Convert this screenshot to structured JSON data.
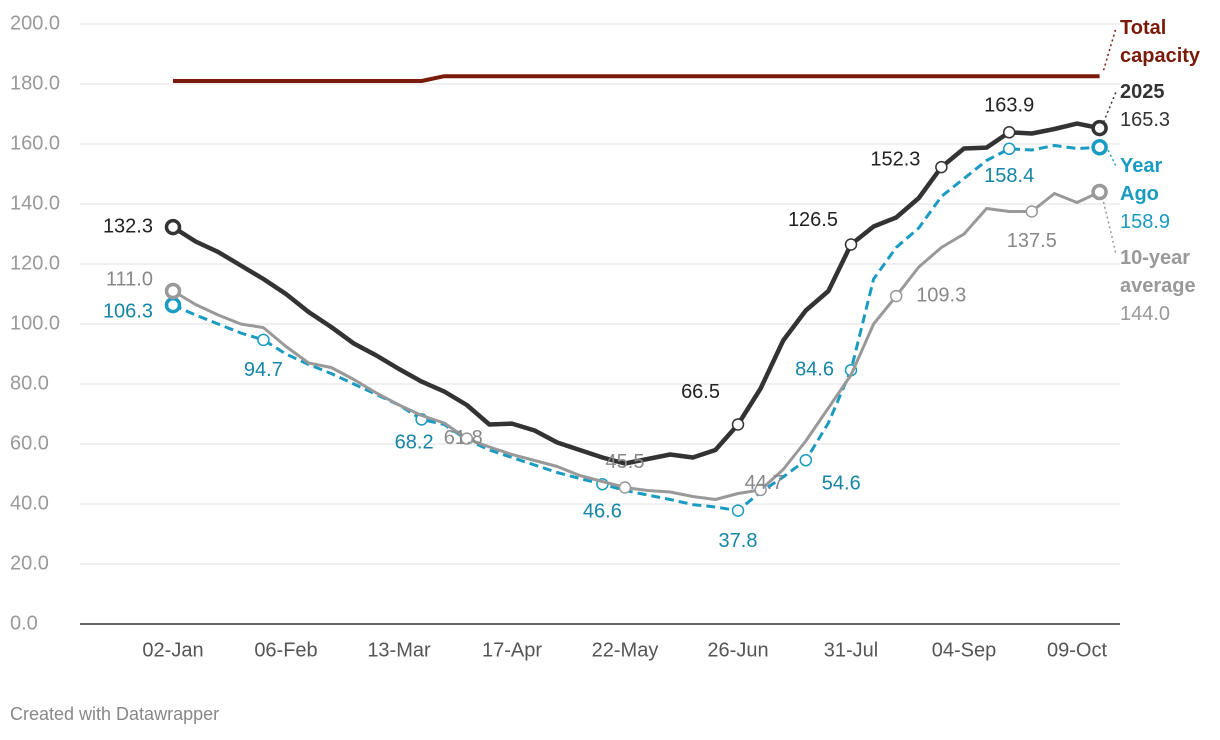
{
  "chart_data": {
    "type": "line",
    "footer": "Created with Datawrapper",
    "categories": [
      "02-Jan",
      null,
      null,
      null,
      null,
      "06-Feb",
      null,
      null,
      null,
      null,
      "13-Mar",
      null,
      null,
      null,
      null,
      "17-Apr",
      null,
      null,
      null,
      null,
      "22-May",
      null,
      null,
      null,
      null,
      "26-Jun",
      null,
      null,
      null,
      null,
      "31-Jul",
      null,
      null,
      null,
      null,
      "04-Sep",
      null,
      null,
      null,
      null,
      "09-Oct",
      null
    ],
    "ylim": [
      0,
      200
    ],
    "yticks": [
      {
        "value": 0,
        "label": "0.0"
      },
      {
        "value": 20,
        "label": "20.0"
      },
      {
        "value": 40,
        "label": "40.0"
      },
      {
        "value": 60,
        "label": "60.0"
      },
      {
        "value": 80,
        "label": "80.0"
      },
      {
        "value": 100,
        "label": "100.0"
      },
      {
        "value": 120,
        "label": "120.0"
      },
      {
        "value": 140,
        "label": "140.0"
      },
      {
        "value": 160,
        "label": "160.0"
      },
      {
        "value": 180,
        "label": "180.0"
      },
      {
        "value": 200,
        "label": "200.0"
      }
    ],
    "grid": true,
    "series": [
      {
        "name": "Total capacity",
        "color": "#7a1a0a",
        "values": [
          181,
          181,
          181,
          181,
          181,
          181,
          181,
          181,
          181,
          181,
          181,
          181,
          182.6,
          182.6,
          182.6,
          182.6,
          182.6,
          182.6,
          182.6,
          182.6,
          182.6,
          182.6,
          182.6,
          182.6,
          182.6,
          182.6,
          182.6,
          182.6,
          182.6,
          182.6,
          182.6,
          182.6,
          182.6,
          182.6,
          182.6,
          182.6,
          182.6,
          182.6,
          182.6,
          182.6,
          182.6,
          182.6
        ]
      },
      {
        "name": "2025",
        "color": "#333333",
        "values": [
          132.3,
          127.5,
          124,
          119.5,
          115,
          110,
          104,
          99,
          93.5,
          89.5,
          85,
          80.8,
          77.5,
          73,
          66.5,
          66.8,
          64.5,
          60.5,
          58,
          55.5,
          53.5,
          55,
          56.5,
          55.5,
          58,
          66.5,
          78.5,
          94.5,
          104.5,
          111,
          126.5,
          132.5,
          135.5,
          142,
          152.3,
          158.5,
          158.8,
          163.9,
          163.5,
          165,
          166.8,
          165.3
        ],
        "value_labels": [
          "132.3",
          null,
          null,
          null,
          null,
          null,
          null,
          null,
          null,
          null,
          null,
          null,
          null,
          null,
          null,
          null,
          null,
          null,
          null,
          null,
          null,
          null,
          null,
          null,
          null,
          "66.5",
          null,
          null,
          null,
          null,
          "126.5",
          null,
          null,
          null,
          "152.3",
          null,
          null,
          "163.9",
          null,
          null,
          null,
          "165.3"
        ]
      },
      {
        "name": "Year Ago",
        "color": "#1a9bc2",
        "dashed": true,
        "values": [
          106.3,
          103,
          100,
          97,
          94.7,
          90,
          86.5,
          83.5,
          80,
          76.5,
          73,
          68.2,
          66.5,
          61.5,
          58,
          55.5,
          53,
          50.5,
          48.5,
          46.6,
          44.5,
          43,
          41.5,
          39.8,
          39,
          37.8,
          44,
          49,
          54.6,
          67,
          84.6,
          115,
          125.5,
          132,
          142.5,
          148.5,
          154.5,
          158.4,
          158,
          159.5,
          158.5,
          158.9
        ],
        "value_labels": [
          "106.3",
          null,
          null,
          null,
          "94.7",
          null,
          null,
          null,
          null,
          null,
          null,
          "68.2",
          null,
          null,
          null,
          null,
          null,
          null,
          null,
          "46.6",
          null,
          null,
          null,
          null,
          null,
          "37.8",
          null,
          null,
          "54.6",
          null,
          "84.6",
          null,
          null,
          null,
          null,
          null,
          null,
          "158.4",
          null,
          null,
          null,
          "158.9"
        ]
      },
      {
        "name": "10-year average",
        "color": "#999999",
        "values": [
          111.0,
          106.5,
          103,
          100,
          98.8,
          92.5,
          87,
          85.5,
          81.5,
          77,
          73,
          69.5,
          67,
          61.8,
          59,
          56.5,
          54.5,
          52.5,
          49.5,
          47.5,
          45.5,
          44.5,
          44,
          42.5,
          41.5,
          43.5,
          44.7,
          51.5,
          61,
          72,
          83,
          100,
          109.3,
          119,
          125.5,
          130,
          138.5,
          137.5,
          137.5,
          143.5,
          140.5,
          144.0
        ],
        "value_labels": [
          "111.0",
          null,
          null,
          null,
          null,
          null,
          null,
          null,
          null,
          null,
          null,
          null,
          null,
          "61.8",
          null,
          null,
          null,
          null,
          null,
          null,
          "45.5",
          null,
          null,
          null,
          null,
          null,
          "44.7",
          null,
          null,
          null,
          null,
          null,
          "109.3",
          null,
          null,
          null,
          null,
          null,
          "137.5",
          null,
          null,
          "144.0"
        ]
      }
    ]
  }
}
